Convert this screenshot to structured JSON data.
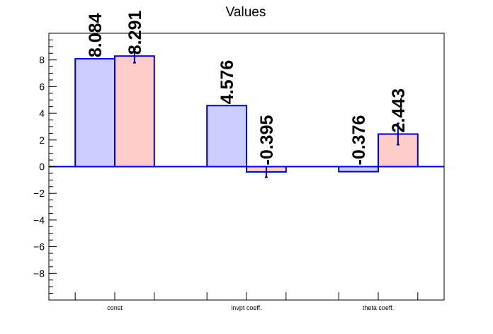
{
  "chart_data": {
    "type": "bar",
    "title": "Values",
    "categories": [
      "const",
      "invpt coeff.",
      "theta coeff."
    ],
    "ylim": [
      -10,
      10
    ],
    "yticks": [
      -8,
      -6,
      -4,
      -2,
      0,
      2,
      4,
      6,
      8
    ],
    "grid": false,
    "series": [
      {
        "fill": "#ccccff",
        "values": [
          8.084,
          4.576,
          -0.376
        ],
        "labels": [
          "8.084",
          "4.576",
          "-0.376"
        ],
        "errors": [
          0,
          0,
          0
        ]
      },
      {
        "fill": "#ffcccc",
        "values": [
          8.291,
          -0.395,
          2.443
        ],
        "labels": [
          "8.291",
          "-0.395",
          "2.443"
        ],
        "errors": [
          0.5,
          0.4,
          0.8
        ]
      }
    ],
    "outline_color": "#0000cc",
    "error_color": "#0000aa"
  }
}
